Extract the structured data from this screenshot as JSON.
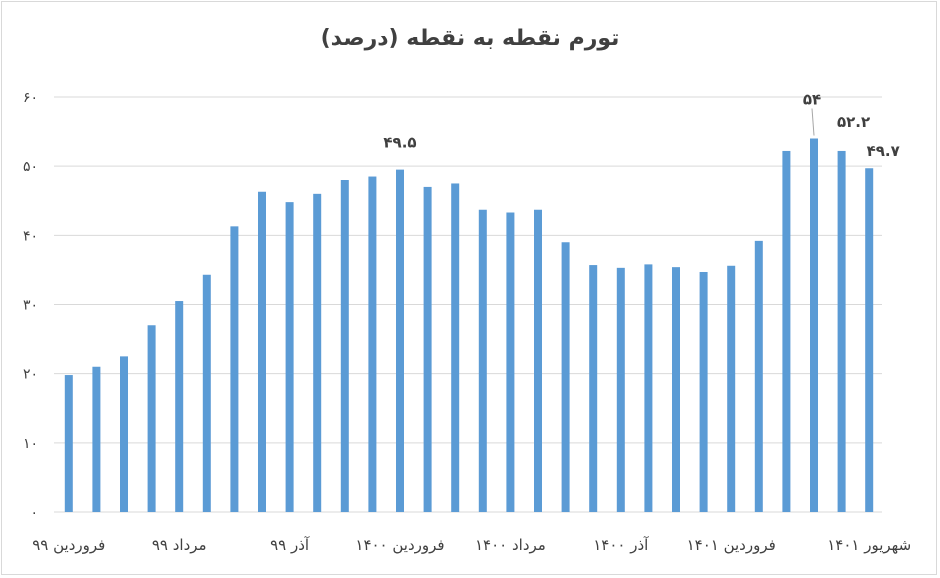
{
  "chart_data": {
    "type": "bar",
    "title": "تورم نقطه به نقطه (درصد)",
    "xlabel": "",
    "ylabel": "",
    "ylim": [
      0,
      60
    ],
    "yticks": [
      0,
      10,
      20,
      30,
      40,
      50,
      60
    ],
    "ytick_labels": [
      "۰",
      "۱۰",
      "۲۰",
      "۳۰",
      "۴۰",
      "۵۰",
      "۶۰"
    ],
    "grid": true,
    "bar_color": "#5b9bd5",
    "values": [
      19.8,
      21.0,
      22.5,
      27.0,
      30.5,
      34.3,
      41.3,
      46.3,
      44.8,
      46.0,
      48.0,
      48.5,
      49.5,
      47.0,
      47.5,
      43.7,
      43.3,
      43.7,
      39.0,
      35.7,
      35.3,
      35.8,
      35.4,
      34.7,
      35.6,
      39.2,
      52.2,
      54.0,
      52.2,
      49.7
    ],
    "x_tick_labels": [
      {
        "index": 0,
        "label": "فروردین ۹۹"
      },
      {
        "index": 4,
        "label": "مرداد ۹۹"
      },
      {
        "index": 8,
        "label": "آذر ۹۹"
      },
      {
        "index": 12,
        "label": "فروردین ۱۴۰۰"
      },
      {
        "index": 16,
        "label": "مرداد ۱۴۰۰"
      },
      {
        "index": 20,
        "label": "آذر ۱۴۰۰"
      },
      {
        "index": 24,
        "label": "فروردین ۱۴۰۱"
      },
      {
        "index": 29,
        "label": "شهریور ۱۴۰۱"
      }
    ],
    "data_labels": [
      {
        "index": 12,
        "text": "۴۹.۵"
      },
      {
        "index": 27,
        "text": "۵۴"
      },
      {
        "index": 28,
        "text": "۵۲.۲"
      },
      {
        "index": 29,
        "text": "۴۹.۷"
      }
    ]
  }
}
